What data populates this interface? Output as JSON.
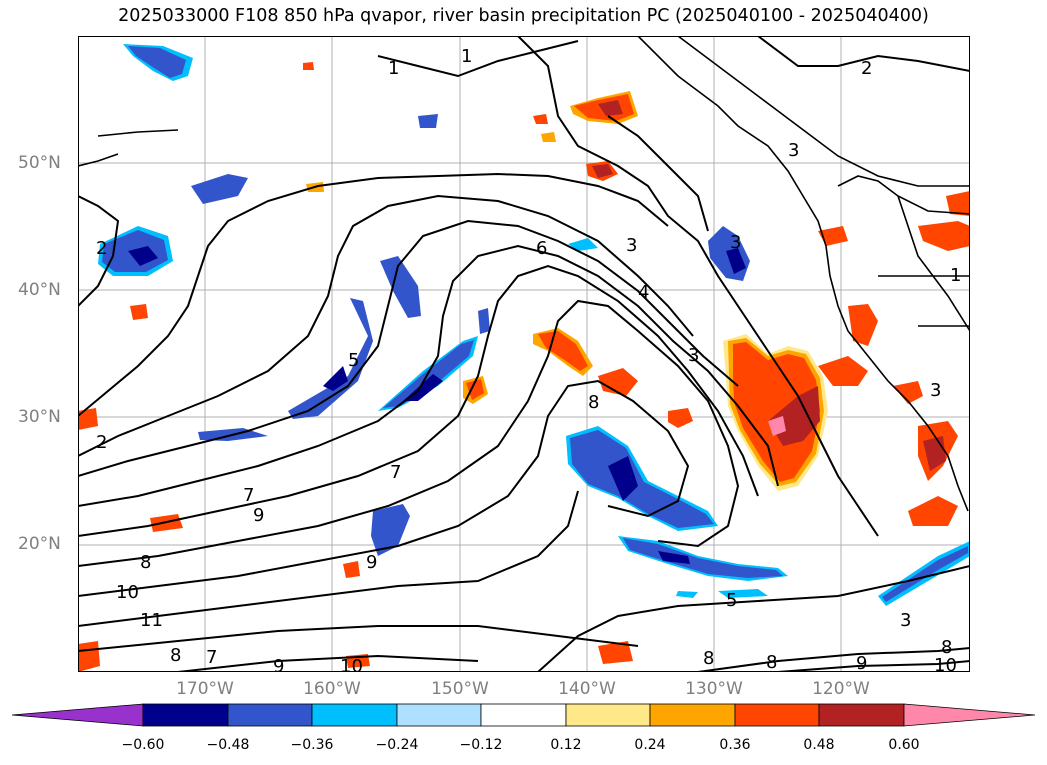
{
  "title": "2025033000 F108 850 hPa qvapor, river basin precipitation PC (2025040100 - 2025040400)",
  "lat_labels": [
    "50°N",
    "40°N",
    "30°N",
    "20°N"
  ],
  "lon_labels": [
    "170°W",
    "160°W",
    "150°W",
    "140°W",
    "130°W",
    "120°W"
  ],
  "colorbar": {
    "ticks": [
      "−0.60",
      "−0.48",
      "−0.36",
      "−0.24",
      "−0.12",
      "0.12",
      "0.24",
      "0.36",
      "0.48",
      "0.60"
    ],
    "colors": [
      "#9932cc",
      "#00008b",
      "#3355cc",
      "#00bfff",
      "#b0e0ff",
      "#ffffff",
      "#ffe88a",
      "#ffa500",
      "#ff4500",
      "#b22222",
      "#ff88aa"
    ]
  },
  "contour_labels": [
    "1",
    "1",
    "2",
    "2",
    "3",
    "3",
    "3",
    "3",
    "4",
    "5",
    "6",
    "7",
    "7",
    "8",
    "8",
    "8",
    "8",
    "9",
    "9",
    "10",
    "10",
    "11",
    "9",
    "8",
    "7",
    "10",
    "8",
    "9",
    "2",
    "3",
    "5",
    "1",
    "3"
  ]
}
